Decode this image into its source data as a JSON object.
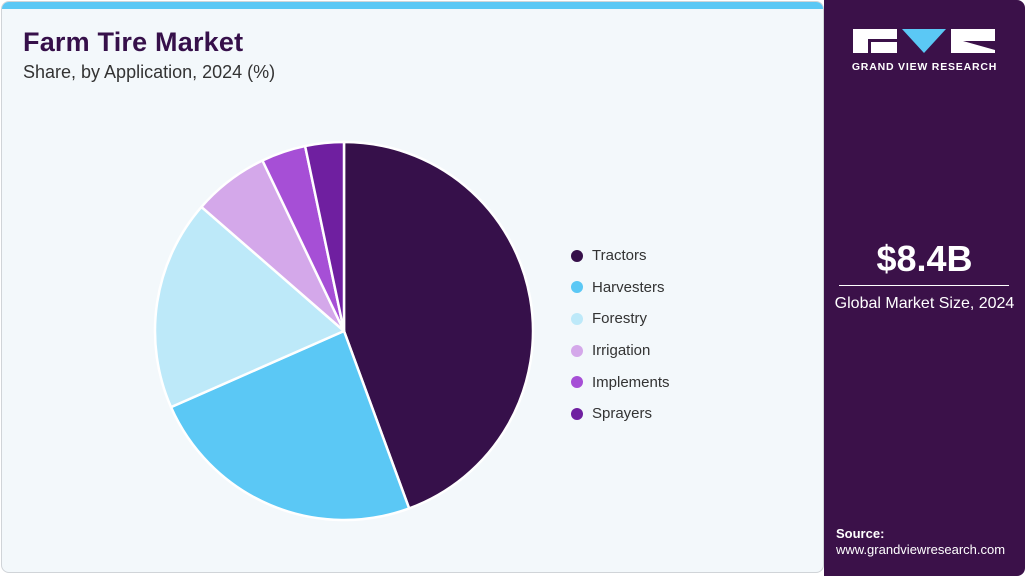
{
  "header": {
    "title": "Farm Tire Market",
    "subtitle": "Share, by Application, 2024 (%)"
  },
  "colors": {
    "accent_bar": "#5bc8f5",
    "sidebar_bg": "#3b1149",
    "title": "#36104a"
  },
  "chart_data": {
    "type": "pie",
    "title": "Farm Tire Market",
    "subtitle": "Share, by Application, 2024 (%)",
    "categories": [
      "Tractors",
      "Harvesters",
      "Forestry",
      "Irrigation",
      "Implements",
      "Sprayers"
    ],
    "values": [
      44.4,
      24.0,
      18.0,
      6.5,
      3.8,
      3.3
    ],
    "colors": [
      "#36104a",
      "#5bc8f5",
      "#bde9f9",
      "#d4a8ea",
      "#a64fd6",
      "#6f1fa0"
    ],
    "start_angle": "12 o'clock, clockwise",
    "legend_position": "right",
    "data_labels": false
  },
  "legend": {
    "items": [
      {
        "label": "Tractors",
        "color": "#36104a"
      },
      {
        "label": "Harvesters",
        "color": "#5bc8f5"
      },
      {
        "label": "Forestry",
        "color": "#bde9f9"
      },
      {
        "label": "Irrigation",
        "color": "#d4a8ea"
      },
      {
        "label": "Implements",
        "color": "#a64fd6"
      },
      {
        "label": "Sprayers",
        "color": "#6f1fa0"
      }
    ]
  },
  "sidebar": {
    "logo_text": "GRAND VIEW RESEARCH",
    "market_size": "$8.4B",
    "market_size_label": "Global Market Size, 2024",
    "source_label": "Source:",
    "source_url": "www.grandviewresearch.com"
  }
}
